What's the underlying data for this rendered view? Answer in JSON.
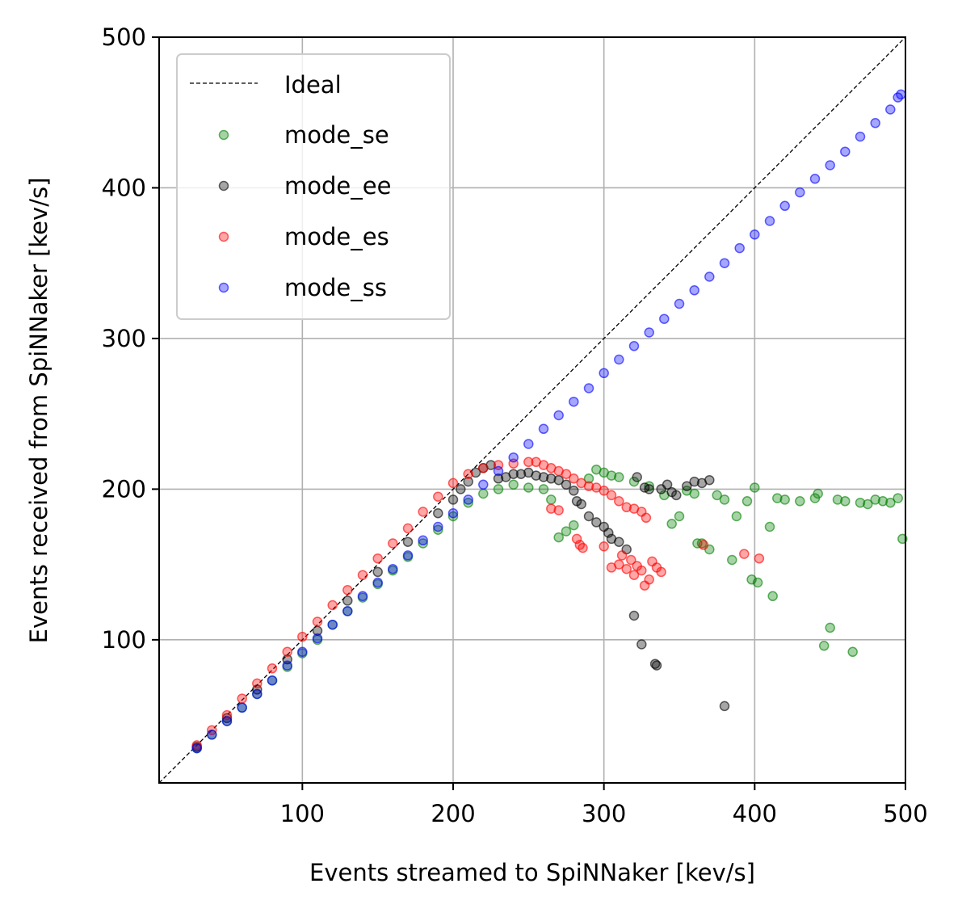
{
  "chart_data": {
    "type": "scatter",
    "title": "",
    "xlabel": "Events streamed to SpiNNaker [kev/s]",
    "ylabel": "Events received from SpiNNaker [kev/s]",
    "xlim": [
      5,
      500
    ],
    "ylim": [
      5,
      500
    ],
    "xticks": [
      100,
      200,
      300,
      400,
      500
    ],
    "yticks": [
      100,
      200,
      300,
      400,
      500
    ],
    "grid": true,
    "legend_position": "top-left",
    "ideal_line": {
      "name": "Ideal",
      "x": [
        5,
        500
      ],
      "y": [
        5,
        500
      ],
      "color": "#000000"
    },
    "series": [
      {
        "name": "mode_se",
        "color": "#008000",
        "points": [
          [
            30,
            28
          ],
          [
            40,
            37
          ],
          [
            50,
            46
          ],
          [
            60,
            55
          ],
          [
            70,
            64
          ],
          [
            80,
            73
          ],
          [
            90,
            82
          ],
          [
            100,
            91
          ],
          [
            110,
            100
          ],
          [
            120,
            110
          ],
          [
            130,
            119
          ],
          [
            140,
            128
          ],
          [
            150,
            137
          ],
          [
            160,
            146
          ],
          [
            170,
            155
          ],
          [
            180,
            164
          ],
          [
            190,
            173
          ],
          [
            200,
            182
          ],
          [
            210,
            191
          ],
          [
            220,
            197
          ],
          [
            230,
            200
          ],
          [
            240,
            203
          ],
          [
            250,
            201
          ],
          [
            260,
            200
          ],
          [
            265,
            193
          ],
          [
            270,
            168
          ],
          [
            275,
            172
          ],
          [
            280,
            176
          ],
          [
            290,
            207
          ],
          [
            295,
            213
          ],
          [
            300,
            211
          ],
          [
            305,
            209
          ],
          [
            310,
            208
          ],
          [
            320,
            205
          ],
          [
            330,
            202
          ],
          [
            340,
            196
          ],
          [
            345,
            177
          ],
          [
            350,
            182
          ],
          [
            355,
            199
          ],
          [
            360,
            197
          ],
          [
            362,
            164
          ],
          [
            365,
            164
          ],
          [
            370,
            160
          ],
          [
            375,
            196
          ],
          [
            380,
            193
          ],
          [
            385,
            153
          ],
          [
            388,
            182
          ],
          [
            395,
            192
          ],
          [
            398,
            140
          ],
          [
            400,
            201
          ],
          [
            402,
            138
          ],
          [
            410,
            175
          ],
          [
            412,
            129
          ],
          [
            415,
            194
          ],
          [
            420,
            193
          ],
          [
            430,
            192
          ],
          [
            440,
            194
          ],
          [
            442,
            197
          ],
          [
            446,
            96
          ],
          [
            450,
            108
          ],
          [
            455,
            193
          ],
          [
            460,
            192
          ],
          [
            465,
            92
          ],
          [
            470,
            191
          ],
          [
            475,
            190
          ],
          [
            480,
            193
          ],
          [
            485,
            192
          ],
          [
            490,
            191
          ],
          [
            495,
            194
          ],
          [
            498,
            167
          ]
        ]
      },
      {
        "name": "mode_ee",
        "color": "#000000",
        "points": [
          [
            30,
            29
          ],
          [
            50,
            48
          ],
          [
            70,
            67
          ],
          [
            90,
            87
          ],
          [
            110,
            106
          ],
          [
            130,
            126
          ],
          [
            150,
            145
          ],
          [
            170,
            165
          ],
          [
            190,
            184
          ],
          [
            200,
            193
          ],
          [
            205,
            200
          ],
          [
            210,
            205
          ],
          [
            215,
            211
          ],
          [
            220,
            214
          ],
          [
            225,
            216
          ],
          [
            230,
            207
          ],
          [
            235,
            208
          ],
          [
            240,
            210
          ],
          [
            245,
            210
          ],
          [
            250,
            211
          ],
          [
            255,
            209
          ],
          [
            260,
            208
          ],
          [
            265,
            207
          ],
          [
            270,
            206
          ],
          [
            275,
            203
          ],
          [
            280,
            199
          ],
          [
            282,
            192
          ],
          [
            285,
            190
          ],
          [
            290,
            182
          ],
          [
            295,
            178
          ],
          [
            300,
            175
          ],
          [
            303,
            171
          ],
          [
            305,
            167
          ],
          [
            310,
            165
          ],
          [
            315,
            160
          ],
          [
            320,
            116
          ],
          [
            322,
            208
          ],
          [
            325,
            97
          ],
          [
            327,
            201
          ],
          [
            330,
            200
          ],
          [
            334,
            84
          ],
          [
            335,
            83
          ],
          [
            338,
            200
          ],
          [
            342,
            203
          ],
          [
            345,
            198
          ],
          [
            348,
            196
          ],
          [
            355,
            202
          ],
          [
            360,
            205
          ],
          [
            365,
            204
          ],
          [
            370,
            206
          ],
          [
            380,
            56
          ]
        ]
      },
      {
        "name": "mode_es",
        "color": "#ff0000",
        "points": [
          [
            30,
            30
          ],
          [
            40,
            40
          ],
          [
            50,
            50
          ],
          [
            60,
            61
          ],
          [
            70,
            71
          ],
          [
            80,
            81
          ],
          [
            90,
            92
          ],
          [
            100,
            102
          ],
          [
            110,
            112
          ],
          [
            120,
            123
          ],
          [
            130,
            133
          ],
          [
            140,
            143
          ],
          [
            150,
            154
          ],
          [
            160,
            164
          ],
          [
            170,
            174
          ],
          [
            180,
            185
          ],
          [
            190,
            195
          ],
          [
            200,
            204
          ],
          [
            210,
            210
          ],
          [
            220,
            214
          ],
          [
            230,
            216
          ],
          [
            240,
            217
          ],
          [
            250,
            218
          ],
          [
            255,
            218
          ],
          [
            260,
            216
          ],
          [
            265,
            214
          ],
          [
            270,
            212
          ],
          [
            275,
            210
          ],
          [
            280,
            207
          ],
          [
            285,
            204
          ],
          [
            290,
            202
          ],
          [
            295,
            201
          ],
          [
            300,
            199
          ],
          [
            305,
            196
          ],
          [
            310,
            192
          ],
          [
            315,
            188
          ],
          [
            320,
            187
          ],
          [
            325,
            185
          ],
          [
            328,
            181
          ],
          [
            265,
            187
          ],
          [
            270,
            186
          ],
          [
            282,
            167
          ],
          [
            284,
            163
          ],
          [
            286,
            161
          ],
          [
            300,
            162
          ],
          [
            305,
            148
          ],
          [
            310,
            150
          ],
          [
            312,
            156
          ],
          [
            315,
            147
          ],
          [
            318,
            153
          ],
          [
            320,
            143
          ],
          [
            322,
            149
          ],
          [
            325,
            146
          ],
          [
            327,
            136
          ],
          [
            330,
            140
          ],
          [
            332,
            152
          ],
          [
            335,
            148
          ],
          [
            338,
            145
          ],
          [
            366,
            163
          ],
          [
            393,
            157
          ],
          [
            403,
            154
          ]
        ]
      },
      {
        "name": "mode_ss",
        "color": "#0000ff",
        "points": [
          [
            30,
            28
          ],
          [
            40,
            37
          ],
          [
            50,
            46
          ],
          [
            60,
            55
          ],
          [
            70,
            64
          ],
          [
            80,
            73
          ],
          [
            90,
            83
          ],
          [
            100,
            92
          ],
          [
            110,
            101
          ],
          [
            120,
            110
          ],
          [
            130,
            119
          ],
          [
            140,
            129
          ],
          [
            150,
            138
          ],
          [
            160,
            147
          ],
          [
            170,
            156
          ],
          [
            180,
            166
          ],
          [
            190,
            175
          ],
          [
            200,
            184
          ],
          [
            210,
            193
          ],
          [
            220,
            203
          ],
          [
            230,
            212
          ],
          [
            240,
            221
          ],
          [
            250,
            230
          ],
          [
            260,
            240
          ],
          [
            270,
            249
          ],
          [
            280,
            258
          ],
          [
            290,
            267
          ],
          [
            300,
            277
          ],
          [
            310,
            286
          ],
          [
            320,
            295
          ],
          [
            330,
            304
          ],
          [
            340,
            313
          ],
          [
            350,
            323
          ],
          [
            360,
            332
          ],
          [
            370,
            341
          ],
          [
            380,
            350
          ],
          [
            390,
            360
          ],
          [
            400,
            369
          ],
          [
            410,
            378
          ],
          [
            420,
            388
          ],
          [
            430,
            397
          ],
          [
            440,
            406
          ],
          [
            450,
            415
          ],
          [
            460,
            424
          ],
          [
            470,
            434
          ],
          [
            480,
            443
          ],
          [
            490,
            452
          ],
          [
            495,
            460
          ],
          [
            497,
            462
          ]
        ]
      }
    ]
  }
}
